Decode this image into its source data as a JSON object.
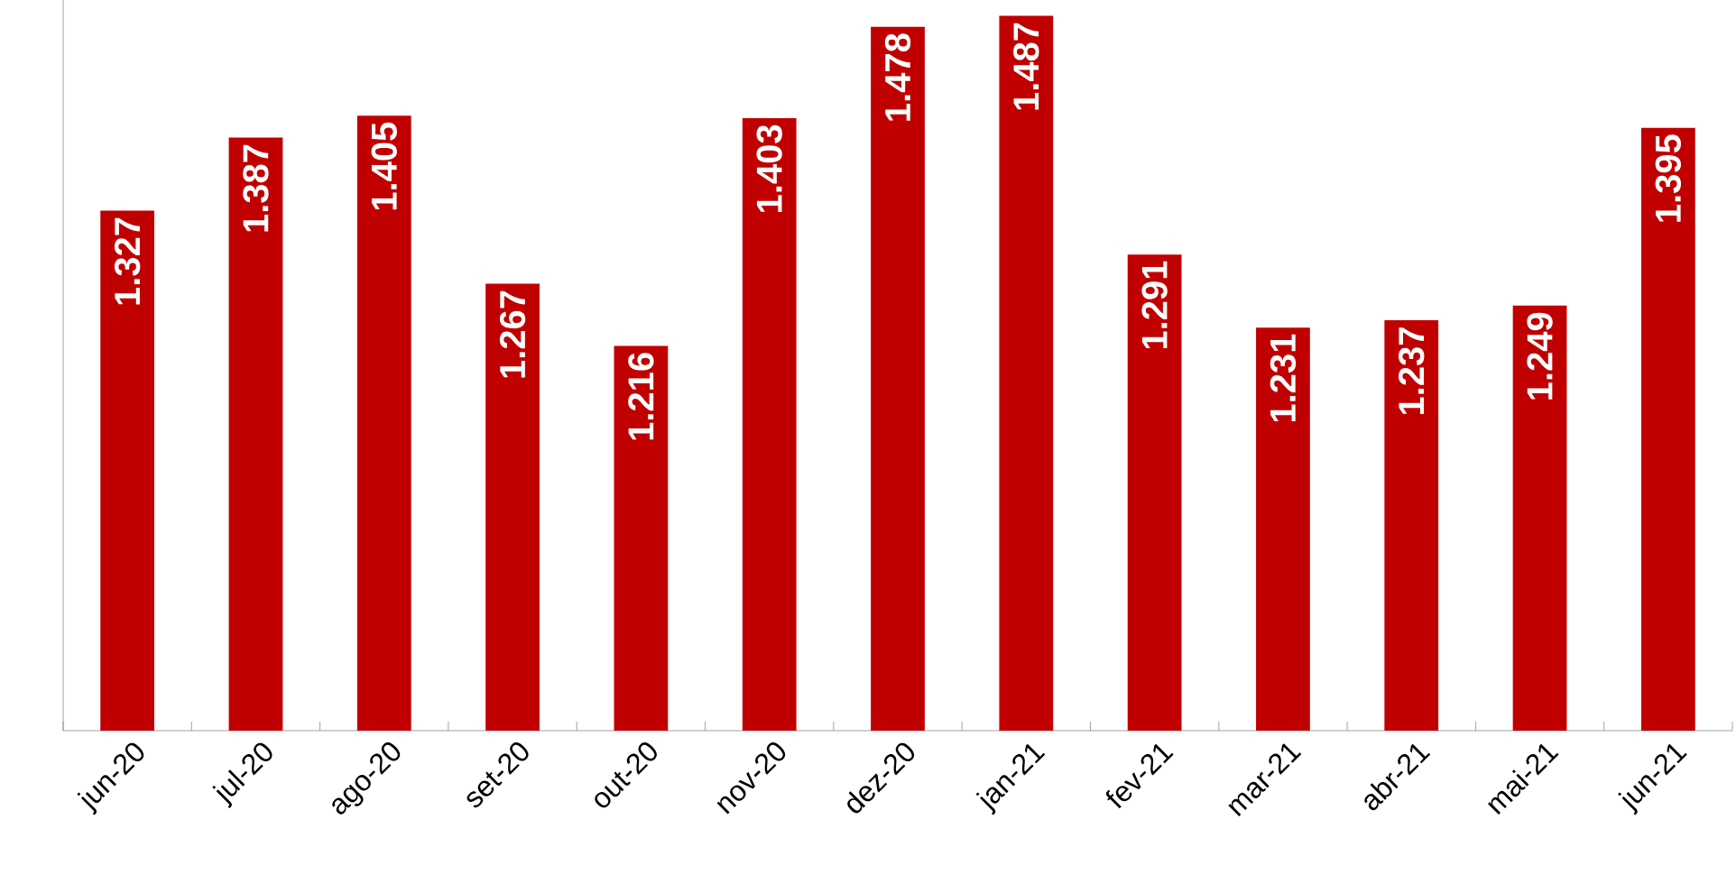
{
  "chart_data": {
    "type": "bar",
    "categories": [
      "jun-20",
      "jul-20",
      "ago-20",
      "set-20",
      "out-20",
      "nov-20",
      "dez-20",
      "jan-21",
      "fev-21",
      "mar-21",
      "abr-21",
      "mai-21",
      "jun-21"
    ],
    "values": [
      1.327,
      1.387,
      1.405,
      1.267,
      1.216,
      1.403,
      1.478,
      1.487,
      1.291,
      1.231,
      1.237,
      1.249,
      1.395
    ],
    "color": "#c00000",
    "ylim": [
      0.9,
      1.5
    ],
    "data_labels": true,
    "tick_labels": "x"
  }
}
